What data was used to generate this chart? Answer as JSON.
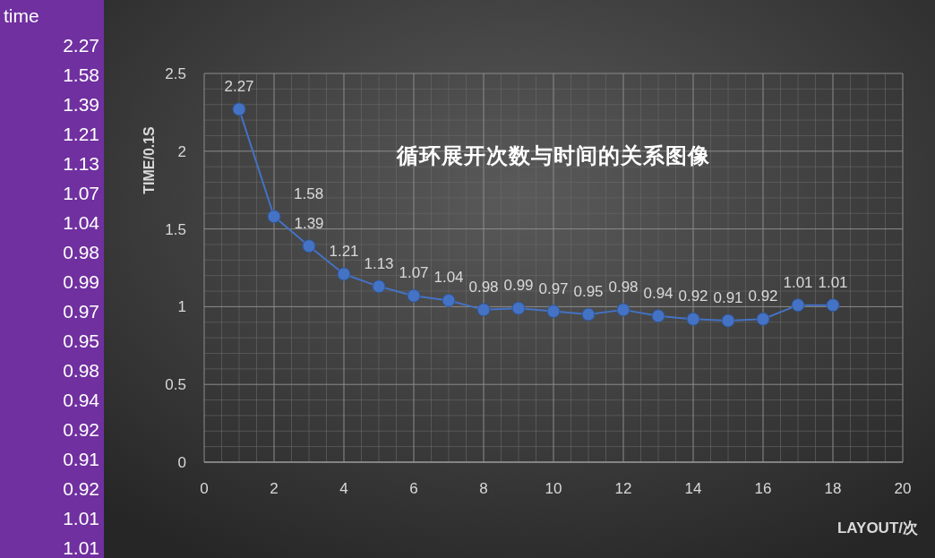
{
  "chart_data": [
    {
      "type": "other",
      "title": "time",
      "annotations": [
        "2.27",
        "1.58",
        "1.39",
        "1.21",
        "1.13",
        "1.07",
        "1.04",
        "0.98",
        "0.99",
        "0.97",
        "0.95",
        "0.98",
        "0.94",
        "0.92",
        "0.91",
        "0.92",
        "1.01",
        "1.01"
      ]
    },
    {
      "type": "line",
      "title": "循环展开次数与时间的关系图像",
      "xlabel": "LAYOUT/次",
      "ylabel": "TIME/0.1S",
      "x": [
        1,
        2,
        3,
        4,
        5,
        6,
        7,
        8,
        9,
        10,
        11,
        12,
        13,
        14,
        15,
        16,
        17,
        18
      ],
      "series": [
        {
          "color": "#4472c4",
          "values": [
            2.27,
            1.58,
            1.39,
            1.21,
            1.13,
            1.07,
            1.04,
            0.98,
            0.99,
            0.97,
            0.95,
            0.98,
            0.94,
            0.92,
            0.91,
            0.92,
            1.01,
            1.01
          ]
        }
      ],
      "xlim": [
        0,
        20
      ],
      "xticks": [
        0,
        2,
        4,
        6,
        8,
        10,
        12,
        14,
        16,
        18,
        20
      ],
      "ylim": [
        0,
        2.5
      ],
      "yticks": [
        0,
        0.5,
        1,
        1.5,
        2,
        2.5
      ],
      "grid": true,
      "marker": "circle",
      "line_style": "solid",
      "data_labels": true
    }
  ]
}
